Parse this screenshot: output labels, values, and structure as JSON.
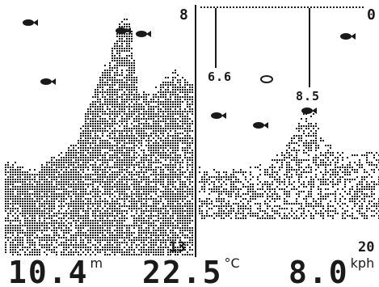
{
  "scale": {
    "history_top": "8",
    "history_bottom": "13",
    "zoom_top": "0",
    "zoom_bottom": "20"
  },
  "zoom_markers": [
    {
      "label": "6.6"
    },
    {
      "label": "8.5"
    }
  ],
  "readouts": {
    "depth": {
      "value": "10.4",
      "unit": "m"
    },
    "temperature": {
      "value": "22.5",
      "unit": "°C"
    },
    "speed": {
      "value": "8.0",
      "unit": "kph"
    }
  },
  "icons": [
    "fish-icon",
    "fish-depth-marker-icon"
  ],
  "colors": {
    "ink": "#1a1a1a",
    "background": "#ffffff"
  }
}
